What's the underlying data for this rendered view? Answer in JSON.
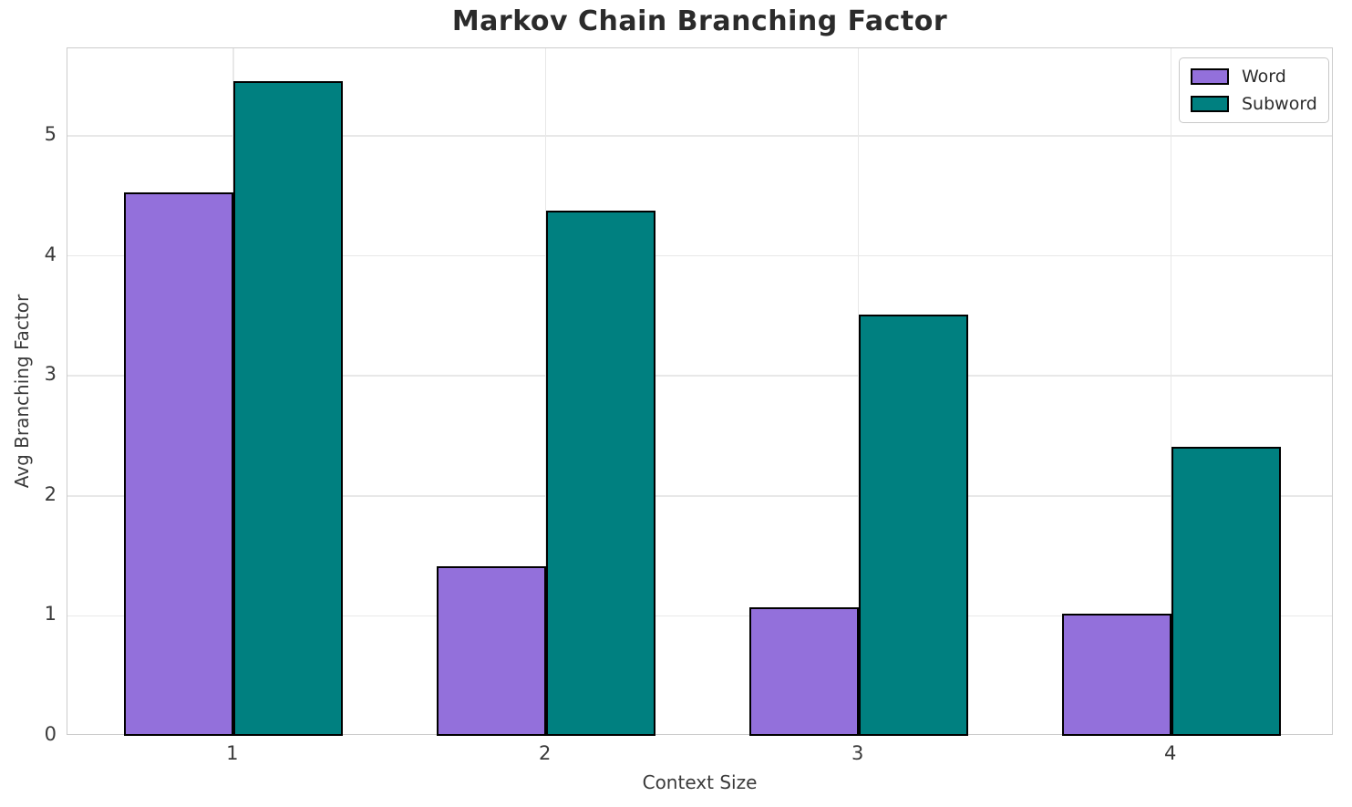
{
  "title": "Markov Chain Branching Factor",
  "chart_data": {
    "type": "bar",
    "title": "Markov Chain Branching Factor",
    "xlabel": "Context Size",
    "ylabel": "Avg Branching Factor",
    "categories": [
      "1",
      "2",
      "3",
      "4"
    ],
    "x": [
      1,
      2,
      3,
      4
    ],
    "series": [
      {
        "name": "Word",
        "color": "#9370DB",
        "values": [
          4.53,
          1.41,
          1.07,
          1.02
        ]
      },
      {
        "name": "Subword",
        "color": "#008080",
        "values": [
          5.46,
          4.38,
          3.51,
          2.41
        ]
      }
    ],
    "yticks": [
      0,
      1,
      2,
      3,
      4,
      5
    ],
    "ylim": [
      0,
      5.73
    ],
    "xlim": [
      0.47,
      4.52
    ],
    "bar_width_data_units": 0.35,
    "grid": true,
    "legend_position": "upper right"
  },
  "colors": {
    "background": "#ffffff",
    "grid": "#e8e8e8",
    "spine": "#cccccc",
    "title_text": "#2b2b2b",
    "tick_text": "#3a3a3a",
    "bar_edge": "#000000"
  }
}
